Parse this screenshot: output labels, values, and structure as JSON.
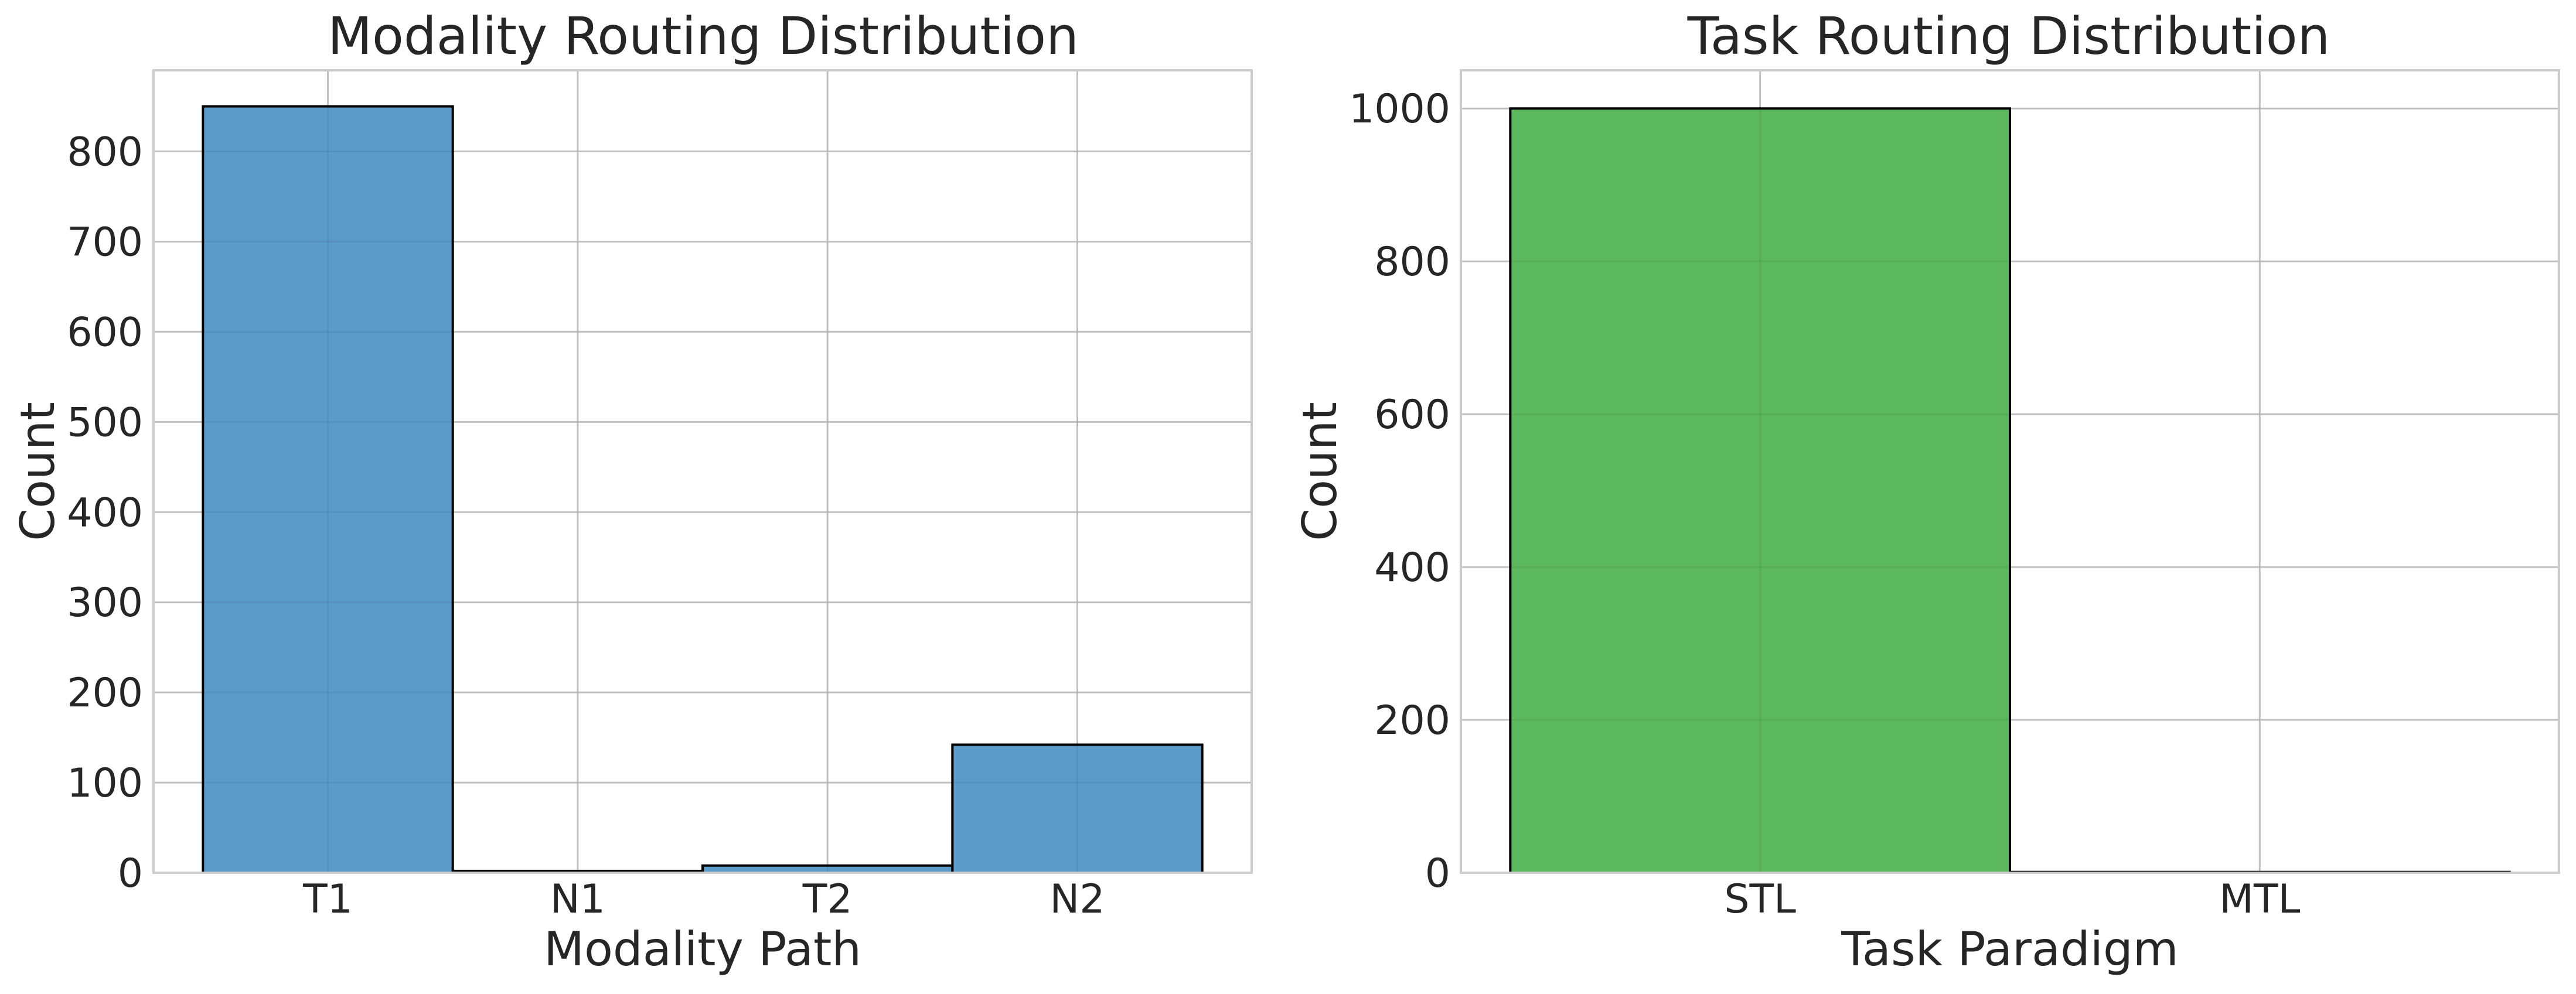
{
  "chart_data": [
    {
      "type": "bar",
      "title": "Modality Routing Distribution",
      "xlabel": "Modality Path",
      "ylabel": "Count",
      "categories": [
        "T1",
        "N1",
        "T2",
        "N2"
      ],
      "values": [
        850,
        2,
        8,
        142
      ],
      "ylim": [
        0,
        890
      ],
      "yticks": [
        0,
        100,
        200,
        300,
        400,
        500,
        600,
        700,
        800
      ],
      "color": "#5b9bc9",
      "grid": true,
      "legend": "none"
    },
    {
      "type": "bar",
      "title": "Task Routing Distribution",
      "xlabel": "Task Paradigm",
      "ylabel": "Count",
      "categories": [
        "STL",
        "MTL"
      ],
      "values": [
        1000,
        1
      ],
      "ylim": [
        0,
        1050
      ],
      "yticks": [
        0,
        200,
        400,
        600,
        800,
        1000
      ],
      "color": "#5cb85c",
      "grid": true,
      "legend": "none"
    }
  ]
}
